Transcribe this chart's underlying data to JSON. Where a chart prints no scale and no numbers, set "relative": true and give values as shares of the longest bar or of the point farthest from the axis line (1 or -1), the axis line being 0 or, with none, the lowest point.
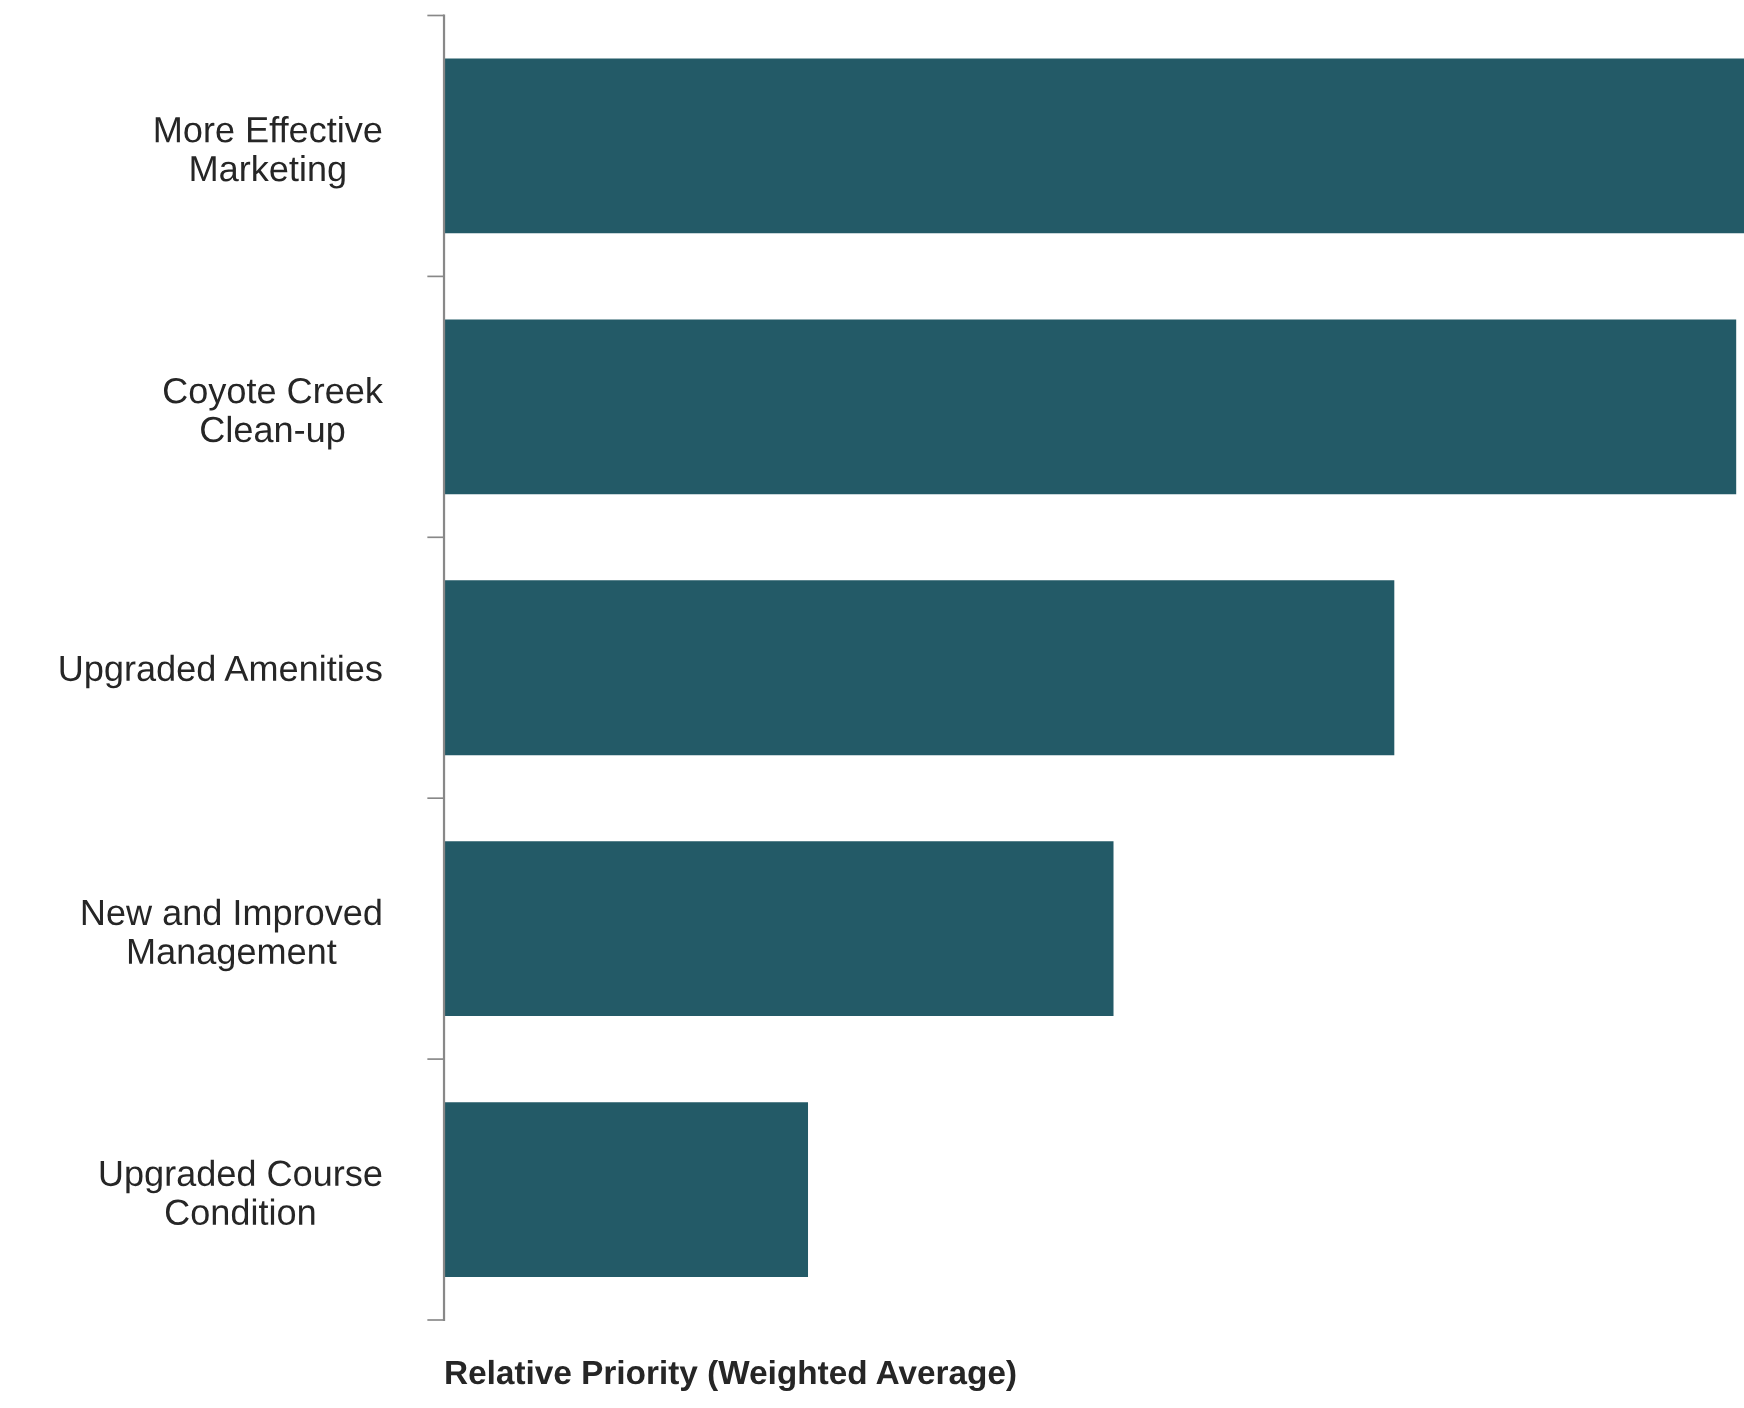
{
  "chart_data": {
    "type": "bar",
    "orientation": "horizontal",
    "relative": true,
    "xlabel": "Relative Priority (Weighted Average)",
    "categories": [
      "More Effective Marketing",
      "Coyote Creek Clean-up",
      "Upgraded Amenities",
      "New and Improved Management",
      "Upgraded Course Condition"
    ],
    "values": [
      1,
      0.994,
      0.731,
      0.515,
      0.28
    ],
    "color": "#235a67",
    "grid": false,
    "legend": false
  }
}
